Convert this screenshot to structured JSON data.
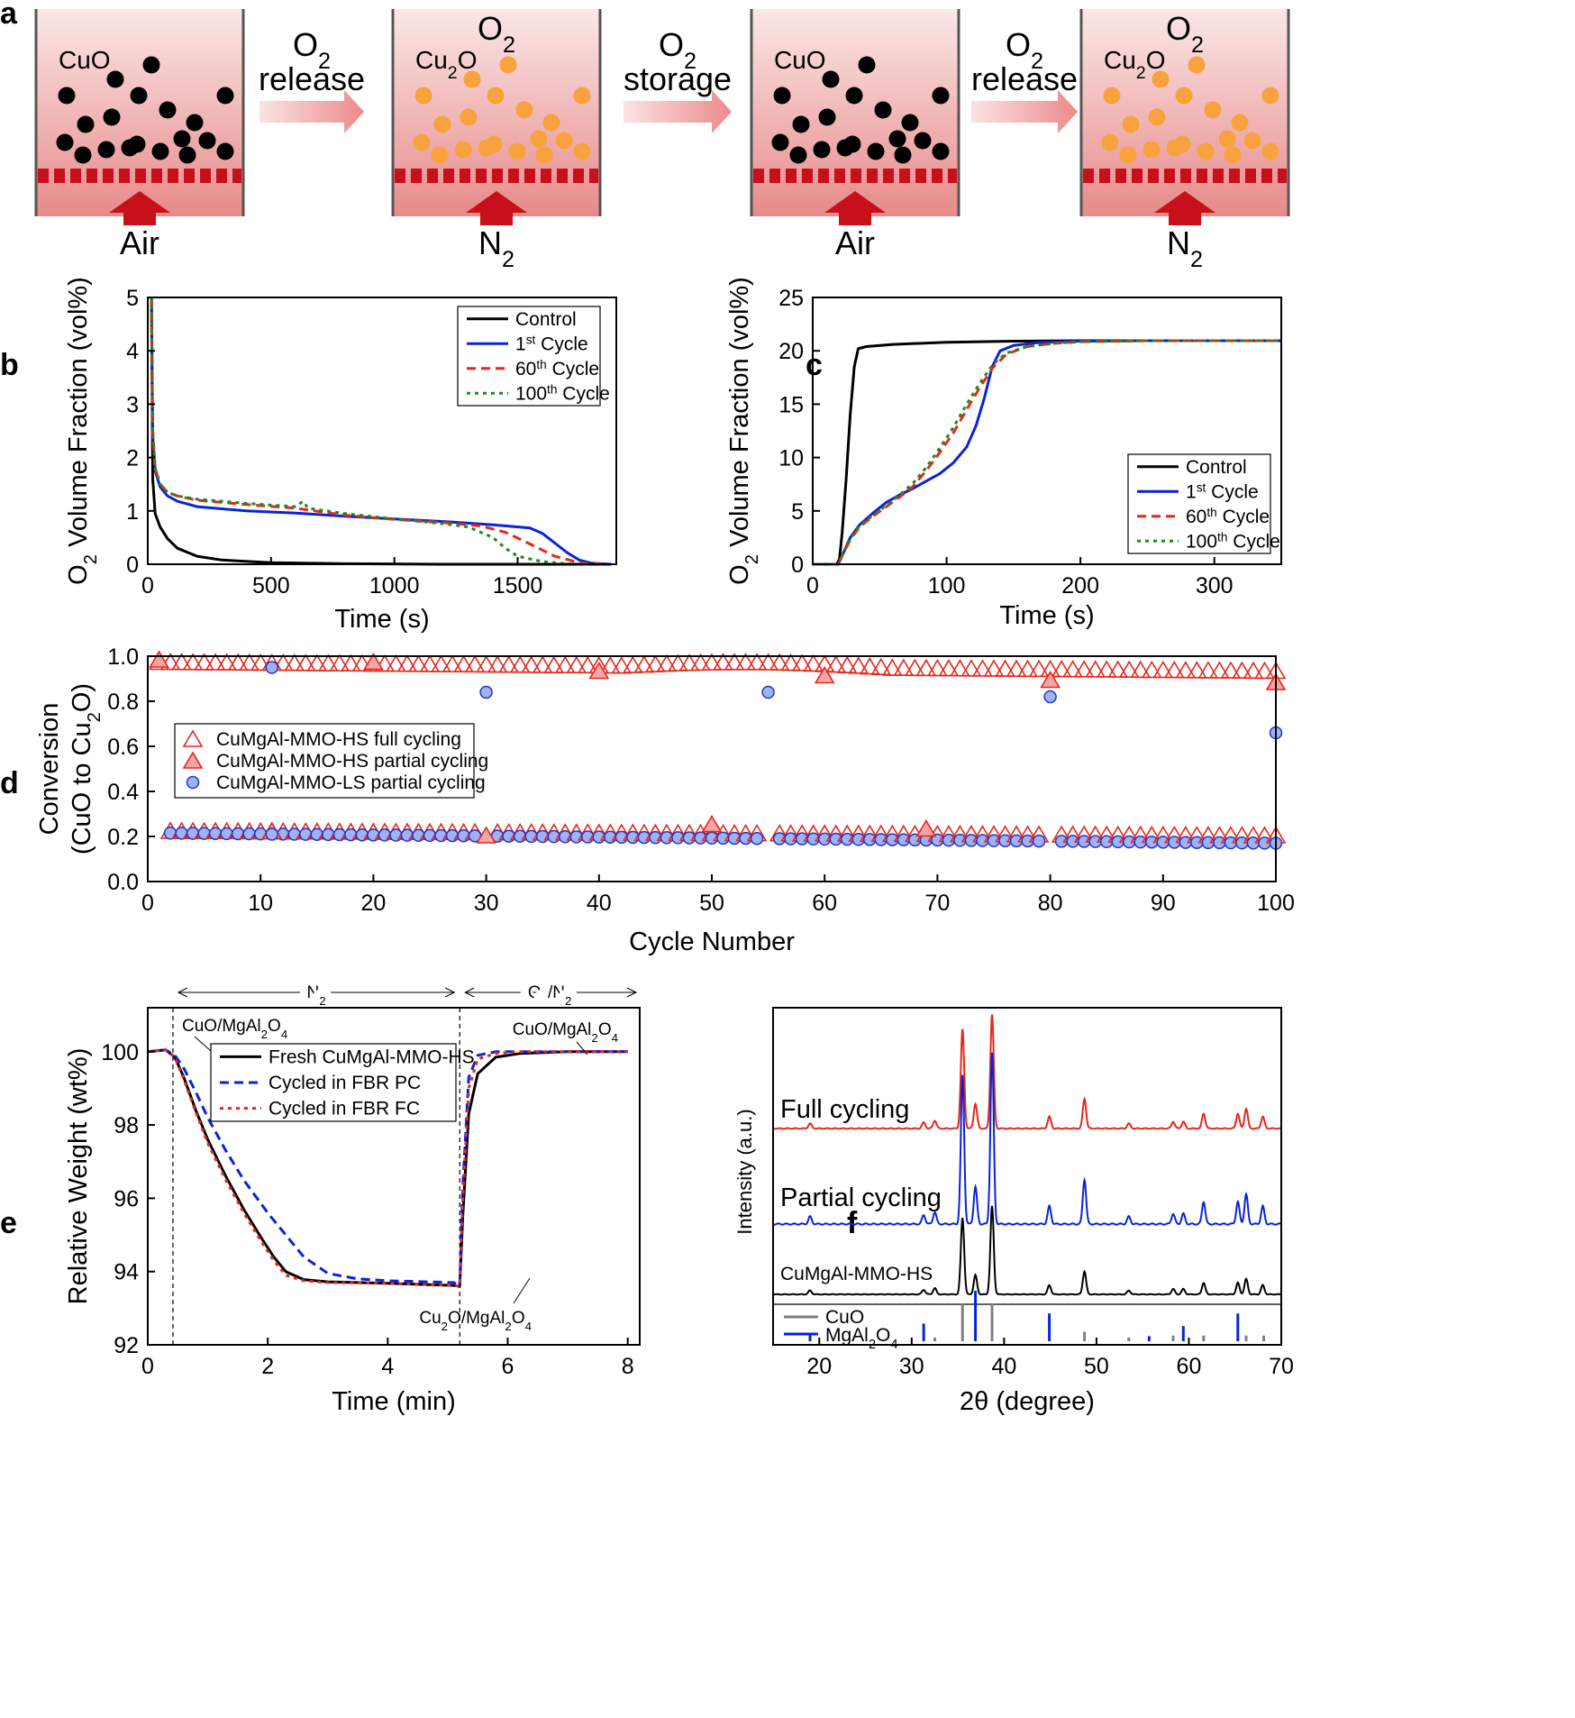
{
  "panel_letters": {
    "a": "a",
    "b": "b",
    "c": "c",
    "d": "d",
    "e": "e",
    "f": "f"
  },
  "schematic": {
    "steps": [
      {
        "top_label": "",
        "particle_label": "CuO",
        "particle_color": "#000000",
        "gas": "Air"
      },
      {
        "top_label": "O2",
        "particle_label": "Cu2O",
        "particle_color": "#f7a23c",
        "gas": "N2"
      },
      {
        "top_label": "",
        "particle_label": "CuO",
        "particle_color": "#000000",
        "gas": "Air"
      },
      {
        "top_label": "O2",
        "particle_label": "Cu2O",
        "particle_color": "#f7a23c",
        "gas": "N2"
      }
    ],
    "arrows": [
      {
        "line1": "O2",
        "line2": "release"
      },
      {
        "line1": "O2",
        "line2": "storage"
      },
      {
        "line1": "O2",
        "line2": "release"
      }
    ]
  },
  "chart_data": [
    {
      "panel": "b",
      "type": "line",
      "xlabel": "Time (s)",
      "ylabel": "O2 Volume Fraction (vol%)",
      "xlim": [
        0,
        1900
      ],
      "ylim": [
        0,
        5
      ],
      "xticks": [
        0,
        500,
        1000,
        1500
      ],
      "yticks": [
        0,
        1,
        2,
        3,
        4,
        5
      ],
      "legend_position": "top-right",
      "series": [
        {
          "name": "Control",
          "color": "#000000",
          "style": "solid",
          "x": [
            15,
            20,
            30,
            50,
            80,
            120,
            200,
            300,
            500,
            800,
            1200,
            1500,
            1800,
            1880
          ],
          "y": [
            5,
            1.6,
            0.95,
            0.7,
            0.48,
            0.3,
            0.15,
            0.08,
            0.03,
            0.01,
            0.0,
            0.0,
            0.0,
            0.0
          ]
        },
        {
          "name": "1st Cycle",
          "color": "#0a22d8",
          "style": "solid",
          "x": [
            15,
            20,
            30,
            50,
            80,
            120,
            200,
            400,
            600,
            800,
            1000,
            1200,
            1400,
            1550,
            1600,
            1650,
            1700,
            1750,
            1800,
            1880
          ],
          "y": [
            5,
            2.4,
            1.75,
            1.45,
            1.28,
            1.18,
            1.08,
            1.0,
            0.96,
            0.9,
            0.85,
            0.8,
            0.74,
            0.68,
            0.58,
            0.4,
            0.22,
            0.08,
            0.02,
            0.0
          ]
        },
        {
          "name": "60th Cycle",
          "color": "#e8261c",
          "style": "dashed",
          "x": [
            15,
            20,
            30,
            50,
            80,
            120,
            200,
            400,
            600,
            800,
            1000,
            1200,
            1350,
            1450,
            1550,
            1650,
            1750,
            1850
          ],
          "y": [
            5,
            2.5,
            1.8,
            1.5,
            1.35,
            1.28,
            1.2,
            1.12,
            1.05,
            0.92,
            0.84,
            0.78,
            0.72,
            0.6,
            0.38,
            0.15,
            0.03,
            0.0
          ]
        },
        {
          "name": "100th Cycle",
          "color": "#1e8a1e",
          "style": "dotted",
          "x": [
            15,
            20,
            30,
            50,
            80,
            120,
            200,
            400,
            600,
            630,
            650,
            800,
            1000,
            1200,
            1300,
            1400,
            1450,
            1500,
            1600,
            1700,
            1800
          ],
          "y": [
            5,
            2.5,
            1.8,
            1.5,
            1.35,
            1.28,
            1.22,
            1.14,
            1.08,
            1.18,
            1.05,
            0.95,
            0.85,
            0.76,
            0.7,
            0.5,
            0.3,
            0.15,
            0.05,
            0.01,
            0.0
          ]
        }
      ]
    },
    {
      "panel": "c",
      "type": "line",
      "xlabel": "Time (s)",
      "ylabel": "O2 Volume Fraction (vol%)",
      "xlim": [
        0,
        350
      ],
      "ylim": [
        0,
        25
      ],
      "xticks": [
        0,
        100,
        200,
        300
      ],
      "yticks": [
        0,
        5,
        10,
        15,
        20,
        25
      ],
      "legend_position": "bottom-right",
      "series": [
        {
          "name": "Control",
          "color": "#000000",
          "style": "solid",
          "x": [
            0,
            18,
            20,
            22,
            25,
            28,
            31,
            34,
            40,
            60,
            100,
            150,
            200,
            350
          ],
          "y": [
            0,
            0,
            0.5,
            3,
            8,
            14,
            18.5,
            20.2,
            20.4,
            20.6,
            20.8,
            20.9,
            20.95,
            20.95
          ]
        },
        {
          "name": "1st Cycle",
          "color": "#0a22d8",
          "style": "solid",
          "x": [
            0,
            19,
            22,
            28,
            35,
            45,
            55,
            65,
            75,
            85,
            95,
            105,
            115,
            122,
            128,
            134,
            140,
            150,
            170,
            200,
            250,
            350
          ],
          "y": [
            0,
            0,
            0.8,
            2.5,
            3.7,
            4.8,
            5.8,
            6.5,
            7.1,
            7.8,
            8.5,
            9.5,
            11,
            13,
            15.5,
            18.5,
            20,
            20.5,
            20.8,
            20.9,
            20.95,
            20.95
          ]
        },
        {
          "name": "60th Cycle",
          "color": "#e8261c",
          "style": "dashed",
          "x": [
            0,
            19,
            22,
            28,
            35,
            45,
            55,
            65,
            75,
            85,
            95,
            105,
            115,
            125,
            135,
            145,
            160,
            180,
            200,
            250,
            350
          ],
          "y": [
            0,
            0,
            0.8,
            2.3,
            3.5,
            4.5,
            5.4,
            6.3,
            7.3,
            8.8,
            10.5,
            12.3,
            14.5,
            16.6,
            18.5,
            19.7,
            20.4,
            20.7,
            20.85,
            20.95,
            20.95
          ]
        },
        {
          "name": "100th Cycle",
          "color": "#1e8a1e",
          "style": "dotted",
          "x": [
            0,
            19,
            22,
            28,
            35,
            45,
            55,
            65,
            75,
            85,
            95,
            105,
            115,
            125,
            135,
            145,
            160,
            180,
            200,
            250,
            350
          ],
          "y": [
            0,
            0,
            0.8,
            2.4,
            3.6,
            4.6,
            5.5,
            6.5,
            7.6,
            9.1,
            10.9,
            12.8,
            15,
            17,
            18.8,
            19.8,
            20.4,
            20.7,
            20.85,
            20.95,
            20.95
          ]
        }
      ]
    },
    {
      "panel": "d",
      "type": "scatter",
      "xlabel": "Cycle Number",
      "ylabel": "Conversion (CuO to Cu2O)",
      "xlim": [
        0,
        100
      ],
      "ylim": [
        0,
        1.0
      ],
      "xticks": [
        0,
        10,
        20,
        30,
        40,
        50,
        60,
        70,
        80,
        90,
        100
      ],
      "yticks": [
        0.0,
        0.2,
        0.4,
        0.6,
        0.8,
        1.0
      ],
      "legend_position": "middle-left",
      "series": [
        {
          "name": "CuMgAl-MMO-HS full cycling",
          "marker": "triangle-open",
          "color": "#e8261c",
          "x_range": [
            1,
            100
          ],
          "y_start": 0.97,
          "y_end": 0.93
        },
        {
          "name": "CuMgAl-MMO-HS partial cycling",
          "marker": "triangle-filled",
          "color": "#e8261c",
          "x": [
            1,
            20,
            40,
            60,
            80,
            100
          ],
          "y": [
            0.98,
            0.97,
            0.93,
            0.91,
            0.89,
            0.88
          ],
          "low_x": [
            11,
            30,
            50,
            69
          ],
          "low_y": [
            0.22,
            0.2,
            0.25,
            0.23
          ]
        },
        {
          "name": "CuMgAl-MMO-LS partial cycling",
          "marker": "circle-filled",
          "color": "#9fb2f2",
          "x": [
            11,
            30,
            55,
            80,
            100
          ],
          "y": [
            0.95,
            0.84,
            0.84,
            0.82,
            0.66
          ]
        }
      ],
      "low_series": {
        "hs_start": 0.22,
        "hs_end": 0.2,
        "ls_start": 0.215,
        "ls_end": 0.17,
        "gaps": [
          30,
          55,
          80
        ]
      }
    },
    {
      "panel": "e",
      "type": "line",
      "xlabel": "Time (min)",
      "ylabel": "Relative Weight (wt%)",
      "xlim": [
        0,
        8.2
      ],
      "ylim": [
        92,
        101.2
      ],
      "xticks": [
        0,
        2,
        4,
        6,
        8
      ],
      "yticks": [
        92,
        94,
        96,
        98,
        100
      ],
      "legend_position": "top-left",
      "annotations": [
        "CuO/MgAl2O4",
        "CuO/MgAl2O4",
        "Cu2O/MgAl2O4",
        "N2",
        "O2/N2"
      ],
      "series": [
        {
          "name": "Fresh CuMgAl-MMO-HS",
          "color": "#000000",
          "style": "solid",
          "x": [
            0,
            0.3,
            0.45,
            0.6,
            0.8,
            1.0,
            1.3,
            1.6,
            1.9,
            2.1,
            2.3,
            2.6,
            3,
            4,
            5.1,
            5.2,
            5.25,
            5.35,
            5.5,
            5.8,
            6.2,
            7,
            8
          ],
          "y": [
            100,
            100.05,
            99.85,
            99.3,
            98.4,
            97.6,
            96.6,
            95.7,
            94.9,
            94.4,
            94.0,
            93.78,
            93.72,
            93.68,
            93.62,
            93.6,
            95.5,
            98.3,
            99.4,
            99.85,
            99.95,
            100,
            100
          ]
        },
        {
          "name": "Cycled in FBR PC",
          "color": "#0a22d8",
          "style": "dashed",
          "x": [
            0,
            0.3,
            0.45,
            0.6,
            0.8,
            1.0,
            1.3,
            1.6,
            2.0,
            2.3,
            2.6,
            3,
            3.5,
            4,
            5.1,
            5.2,
            5.25,
            5.35,
            5.5,
            5.8,
            6.2,
            7,
            8
          ],
          "y": [
            100,
            100.05,
            99.9,
            99.55,
            98.9,
            98.2,
            97.3,
            96.5,
            95.6,
            95.0,
            94.4,
            93.95,
            93.8,
            93.75,
            93.7,
            93.6,
            96.3,
            99.3,
            99.9,
            100,
            100,
            100,
            100
          ]
        },
        {
          "name": "Cycled in FBR FC",
          "color": "#e8261c",
          "style": "dotted",
          "x": [
            0,
            0.3,
            0.45,
            0.6,
            0.8,
            1.0,
            1.3,
            1.6,
            1.9,
            2.1,
            2.3,
            2.6,
            3,
            4,
            5.1,
            5.2,
            5.25,
            5.35,
            5.5,
            5.8,
            6.2,
            7,
            8
          ],
          "y": [
            100,
            100.05,
            99.85,
            99.25,
            98.35,
            97.5,
            96.5,
            95.6,
            94.8,
            94.3,
            93.9,
            93.75,
            93.7,
            93.68,
            93.62,
            93.6,
            96.0,
            99.0,
            99.8,
            99.95,
            100,
            100,
            100
          ]
        }
      ]
    },
    {
      "panel": "f",
      "type": "line",
      "xlabel": "2θ (degree)",
      "ylabel": "Intensity (a.u.)",
      "xlim": [
        15,
        70
      ],
      "ylim": [
        0,
        1
      ],
      "xticks": [
        20,
        30,
        40,
        50,
        60,
        70
      ],
      "series_labels": [
        "Full cycling",
        "Partial cycling",
        "CuMgAl-MMO-HS"
      ],
      "series": [
        {
          "name": "Full cycling",
          "color": "#e8261c"
        },
        {
          "name": "Partial cycling",
          "color": "#0a22d8"
        },
        {
          "name": "CuMgAl-MMO-HS",
          "color": "#000000"
        }
      ],
      "peaks": [
        {
          "x": 19.0,
          "h": 0.05
        },
        {
          "x": 31.3,
          "h": 0.06
        },
        {
          "x": 32.5,
          "h": 0.08
        },
        {
          "x": 35.5,
          "h": 1.0
        },
        {
          "x": 36.9,
          "h": 0.25
        },
        {
          "x": 38.7,
          "h": 1.15
        },
        {
          "x": 44.9,
          "h": 0.12
        },
        {
          "x": 48.7,
          "h": 0.3
        },
        {
          "x": 53.5,
          "h": 0.05
        },
        {
          "x": 58.3,
          "h": 0.07
        },
        {
          "x": 59.4,
          "h": 0.07
        },
        {
          "x": 61.6,
          "h": 0.15
        },
        {
          "x": 65.3,
          "h": 0.15
        },
        {
          "x": 66.2,
          "h": 0.2
        },
        {
          "x": 68.0,
          "h": 0.12
        }
      ],
      "reference": {
        "legend": [
          "CuO",
          "MgAl2O4"
        ],
        "CuO": [
          {
            "x": 32.5,
            "h": 0.1
          },
          {
            "x": 35.5,
            "h": 1.0
          },
          {
            "x": 38.7,
            "h": 1.0
          },
          {
            "x": 48.7,
            "h": 0.25
          },
          {
            "x": 53.5,
            "h": 0.1
          },
          {
            "x": 58.3,
            "h": 0.15
          },
          {
            "x": 61.6,
            "h": 0.15
          },
          {
            "x": 66.2,
            "h": 0.15
          },
          {
            "x": 68.1,
            "h": 0.15
          }
        ],
        "MgAl2O4": [
          {
            "x": 19.0,
            "h": 0.15
          },
          {
            "x": 31.3,
            "h": 0.35
          },
          {
            "x": 36.9,
            "h": 1.0
          },
          {
            "x": 44.9,
            "h": 0.55
          },
          {
            "x": 55.7,
            "h": 0.1
          },
          {
            "x": 59.4,
            "h": 0.3
          },
          {
            "x": 65.3,
            "h": 0.55
          }
        ]
      }
    }
  ]
}
